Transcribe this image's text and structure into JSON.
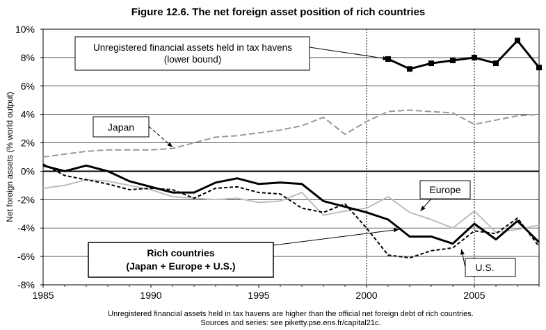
{
  "chart_data": {
    "type": "line",
    "title": "Figure 12.6. The net foreign asset position of rich countries",
    "xlabel": "",
    "ylabel": "Net foreign assets (% world output)",
    "xlim": [
      1985,
      2008
    ],
    "ylim": [
      -8,
      10
    ],
    "x_ticks": [
      "1985",
      "1990",
      "1995",
      "2000",
      "2005"
    ],
    "y_ticks": [
      "10%",
      "8%",
      "6%",
      "4%",
      "2%",
      "0%",
      "-2%",
      "-4%",
      "-6%",
      "-8%"
    ],
    "y_tick_values": [
      10,
      8,
      6,
      4,
      2,
      0,
      -2,
      -4,
      -6,
      -8
    ],
    "x_tick_values": [
      1985,
      1990,
      1995,
      2000,
      2005
    ],
    "vertical_dotted_lines": [
      2000,
      2005
    ],
    "grid": "horizontal",
    "legend": "callout-labels",
    "annotations": {
      "havens": "Unregistered financial assets held in tax havens",
      "havens_sub": "(lower bound)",
      "japan": "Japan",
      "europe": "Europe",
      "rich": "Rich countries",
      "rich_sub": "(Japan + Europe + U.S.)",
      "us": "U.S."
    },
    "footnote": "Unregistered financial assets held in tax havens are higher than the official net foreign debt of rich countries.",
    "source": "Sources and series: see piketty.pse.ens.fr/capital21c.",
    "series": [
      {
        "key": "havens",
        "color": "#000000",
        "style": "solid-markers",
        "x": [
          2001,
          2002,
          2003,
          2004,
          2005,
          2006,
          2007,
          2008
        ],
        "values": [
          7.9,
          7.2,
          7.6,
          7.8,
          8.0,
          7.6,
          9.2,
          7.3
        ]
      },
      {
        "key": "japan",
        "color": "#999999",
        "style": "dashed",
        "x": [
          1985,
          1986,
          1987,
          1988,
          1989,
          1990,
          1991,
          1992,
          1993,
          1994,
          1995,
          1996,
          1997,
          1998,
          1999,
          2000,
          2001,
          2002,
          2003,
          2004,
          2005,
          2006,
          2007,
          2008
        ],
        "values": [
          1.0,
          1.2,
          1.4,
          1.5,
          1.5,
          1.5,
          1.6,
          2.0,
          2.4,
          2.5,
          2.7,
          2.9,
          3.2,
          3.8,
          2.6,
          3.5,
          4.2,
          4.3,
          4.2,
          4.1,
          3.3,
          3.6,
          3.9,
          4.0
        ]
      },
      {
        "key": "europe",
        "color": "#bdbdbd",
        "style": "solid",
        "x": [
          1985,
          1986,
          1987,
          1988,
          1989,
          1990,
          1991,
          1992,
          1993,
          1994,
          1995,
          1996,
          1997,
          1998,
          1999,
          2000,
          2001,
          2002,
          2003,
          2004,
          2005,
          2006,
          2007,
          2008
        ],
        "values": [
          -1.2,
          -1.0,
          -0.6,
          -0.7,
          -1.0,
          -1.3,
          -1.8,
          -1.9,
          -2.0,
          -1.9,
          -2.2,
          -2.1,
          -1.5,
          -3.1,
          -2.8,
          -2.6,
          -1.8,
          -2.9,
          -3.4,
          -4.0,
          -2.8,
          -4.3,
          -4.1,
          -3.8
        ]
      },
      {
        "key": "rich",
        "color": "#000000",
        "style": "solid-thick",
        "x": [
          1985,
          1986,
          1987,
          1988,
          1989,
          1990,
          1991,
          1992,
          1993,
          1994,
          1995,
          1996,
          1997,
          1998,
          1999,
          2000,
          2001,
          2002,
          2003,
          2004,
          2005,
          2006,
          2007,
          2008
        ],
        "values": [
          0.4,
          0.0,
          0.4,
          0.0,
          -0.7,
          -1.1,
          -1.5,
          -1.5,
          -0.8,
          -0.5,
          -0.9,
          -0.8,
          -0.9,
          -2.1,
          -2.5,
          -2.9,
          -3.4,
          -4.6,
          -4.6,
          -5.1,
          -3.7,
          -4.8,
          -3.5,
          -5.0
        ]
      },
      {
        "key": "us",
        "color": "#000000",
        "style": "dashed",
        "x": [
          1985,
          1986,
          1987,
          1988,
          1989,
          1990,
          1991,
          1992,
          1993,
          1994,
          1995,
          1996,
          1997,
          1998,
          1999,
          2000,
          2001,
          2002,
          2003,
          2004,
          2005,
          2006,
          2007,
          2008
        ],
        "values": [
          0.5,
          -0.3,
          -0.6,
          -0.9,
          -1.3,
          -1.2,
          -1.3,
          -1.9,
          -1.2,
          -1.1,
          -1.5,
          -1.6,
          -2.6,
          -2.9,
          -2.3,
          -4.0,
          -5.9,
          -6.1,
          -5.6,
          -5.4,
          -4.2,
          -4.4,
          -3.3,
          -5.3
        ]
      }
    ]
  }
}
